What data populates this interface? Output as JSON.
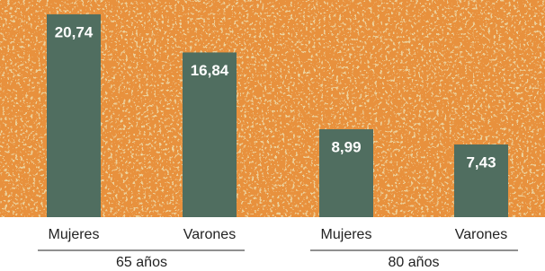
{
  "chart_data": {
    "type": "bar",
    "categories": [
      "Mujeres",
      "Varones",
      "Mujeres",
      "Varones"
    ],
    "groups": [
      "65 años",
      "80 años"
    ],
    "values": [
      20.74,
      16.84,
      8.99,
      7.43
    ],
    "value_labels": [
      "20,74",
      "16,84",
      "8,99",
      "7,43"
    ],
    "color": "#506e60"
  }
}
